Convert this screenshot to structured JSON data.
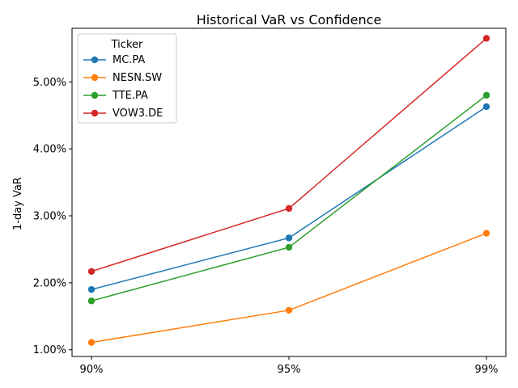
{
  "chart_data": {
    "type": "line",
    "title": "Historical VaR vs Confidence",
    "xlabel": "",
    "ylabel": "1-day VaR",
    "categories": [
      "90%",
      "95%",
      "99%"
    ],
    "y_format": "percent_2dp",
    "ylim": [
      0.009,
      0.058
    ],
    "yticks": [
      0.01,
      0.02,
      0.03,
      0.04,
      0.05
    ],
    "ytick_labels": [
      "1.00%",
      "2.00%",
      "3.00%",
      "4.00%",
      "5.00%"
    ],
    "grid": false,
    "legend": {
      "title": "Ticker",
      "placement": "upper-left"
    },
    "series": [
      {
        "name": "MC.PA",
        "color": "#1f77b4",
        "values": [
          0.019,
          0.0267,
          0.0463
        ]
      },
      {
        "name": "NESN.SW",
        "color": "#ff7f0e",
        "values": [
          0.0111,
          0.0159,
          0.0274
        ]
      },
      {
        "name": "TTE.PA",
        "color": "#2ca02c",
        "values": [
          0.0173,
          0.0253,
          0.048
        ]
      },
      {
        "name": "VOW3.DE",
        "color": "#d62728",
        "values": [
          0.0217,
          0.0311,
          0.0565
        ]
      }
    ]
  }
}
